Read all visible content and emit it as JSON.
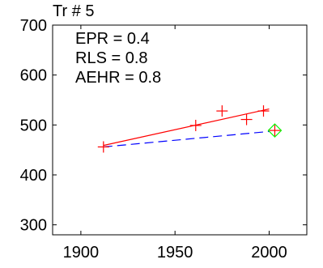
{
  "chart_data": {
    "type": "scatter",
    "title": "Tr # 5",
    "xlabel": "",
    "ylabel": "",
    "xlim": [
      1885,
      2020
    ],
    "ylim": [
      280,
      700
    ],
    "x_ticks": [
      1900,
      1950,
      2000
    ],
    "y_ticks": [
      300,
      400,
      500,
      600,
      700
    ],
    "x_tick_labels": [
      "1900",
      "1950",
      "2000"
    ],
    "y_tick_labels": [
      "300",
      "400",
      "500",
      "600",
      "700"
    ],
    "grid": false,
    "annotations": [
      "EPR = 0.4",
      "RLS = 0.8",
      "AEHR = 0.8"
    ],
    "series": [
      {
        "style": "markers",
        "marker": "plus",
        "color": "#ff0000",
        "x": [
          1912,
          1961,
          1975,
          1988,
          1997,
          2003
        ],
        "y": [
          456,
          499,
          528,
          511,
          528,
          489
        ]
      },
      {
        "style": "solid-line",
        "color": "#ff0000",
        "x": [
          1912,
          2000
        ],
        "y": [
          459,
          532
        ]
      },
      {
        "style": "dashed-line",
        "color": "#0000ff",
        "x": [
          1912,
          2000
        ],
        "y": [
          456,
          487
        ]
      },
      {
        "style": "markers",
        "marker": "diamond",
        "color": "#00ff00",
        "x": [
          2003
        ],
        "y": [
          489
        ]
      }
    ]
  }
}
